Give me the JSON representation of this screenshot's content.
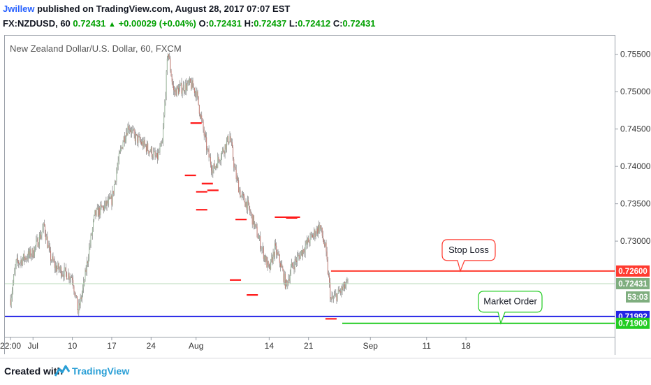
{
  "header": {
    "author": "Jwillew",
    "published_text": "published on TradingView.com, August 28, 2017 07:07 EST",
    "symbol": "FX:NZDUSD, 60",
    "last": "0.72431",
    "change": "+0.00029 (+0.04%)",
    "o_label": "O:",
    "o_value": "0.72431",
    "h_label": "H:",
    "h_value": "0.72437",
    "l_label": "L:",
    "l_value": "0.72412",
    "c_label": "C:",
    "c_value": "0.72431"
  },
  "chart_data": {
    "type": "candlestick",
    "title": "New Zealand Dollar/U.S. Dollar, 60, FXCM",
    "y_ticks": [
      "0.75500",
      "0.75000",
      "0.74500",
      "0.74000",
      "0.73500",
      "0.73000"
    ],
    "y_tick_values": [
      0.755,
      0.75,
      0.745,
      0.74,
      0.735,
      0.73
    ],
    "ylim": [
      0.7172,
      0.7575
    ],
    "x_ticks": [
      "22:00",
      "Jul",
      "10",
      "17",
      "24",
      "Aug",
      "14",
      "21",
      "Sep",
      "11",
      "18"
    ],
    "x_tick_dates": [
      "2017-06-29",
      "2017-07-03",
      "2017-07-10",
      "2017-07-17",
      "2017-07-24",
      "2017-08-01",
      "2017-08-14",
      "2017-08-21",
      "2017-09-01",
      "2017-09-11",
      "2017-09-18"
    ],
    "price_path": [
      {
        "date": "2017-06-29",
        "price": 0.7222
      },
      {
        "date": "2017-06-30",
        "price": 0.727
      },
      {
        "date": "2017-07-03",
        "price": 0.7285
      },
      {
        "date": "2017-07-05",
        "price": 0.732
      },
      {
        "date": "2017-07-06",
        "price": 0.728
      },
      {
        "date": "2017-07-07",
        "price": 0.7265
      },
      {
        "date": "2017-07-10",
        "price": 0.7252
      },
      {
        "date": "2017-07-11",
        "price": 0.7205
      },
      {
        "date": "2017-07-12",
        "price": 0.724
      },
      {
        "date": "2017-07-13",
        "price": 0.729
      },
      {
        "date": "2017-07-14",
        "price": 0.7335
      },
      {
        "date": "2017-07-17",
        "price": 0.7355
      },
      {
        "date": "2017-07-18",
        "price": 0.74
      },
      {
        "date": "2017-07-19",
        "price": 0.7435
      },
      {
        "date": "2017-07-20",
        "price": 0.7455
      },
      {
        "date": "2017-07-21",
        "price": 0.744
      },
      {
        "date": "2017-07-24",
        "price": 0.742
      },
      {
        "date": "2017-07-25",
        "price": 0.741
      },
      {
        "date": "2017-07-26",
        "price": 0.743
      },
      {
        "date": "2017-07-27",
        "price": 0.7555
      },
      {
        "date": "2017-07-28",
        "price": 0.75
      },
      {
        "date": "2017-07-31",
        "price": 0.751
      },
      {
        "date": "2017-08-01",
        "price": 0.75
      },
      {
        "date": "2017-08-02",
        "price": 0.746
      },
      {
        "date": "2017-08-03",
        "price": 0.742
      },
      {
        "date": "2017-08-04",
        "price": 0.7395
      },
      {
        "date": "2017-08-07",
        "price": 0.744
      },
      {
        "date": "2017-08-08",
        "price": 0.739
      },
      {
        "date": "2017-08-09",
        "price": 0.736
      },
      {
        "date": "2017-08-10",
        "price": 0.735
      },
      {
        "date": "2017-08-11",
        "price": 0.733
      },
      {
        "date": "2017-08-14",
        "price": 0.726
      },
      {
        "date": "2017-08-15",
        "price": 0.729
      },
      {
        "date": "2017-08-16",
        "price": 0.727
      },
      {
        "date": "2017-08-17",
        "price": 0.724
      },
      {
        "date": "2017-08-18",
        "price": 0.7265
      },
      {
        "date": "2017-08-21",
        "price": 0.73
      },
      {
        "date": "2017-08-22",
        "price": 0.731
      },
      {
        "date": "2017-08-23",
        "price": 0.732
      },
      {
        "date": "2017-08-24",
        "price": 0.729
      },
      {
        "date": "2017-08-25",
        "price": 0.722
      },
      {
        "date": "2017-08-28",
        "price": 0.7243
      }
    ],
    "markers": [
      {
        "date": "2017-08-01",
        "price": 0.7458
      },
      {
        "date": "2017-07-31",
        "price": 0.7388
      },
      {
        "date": "2017-08-03",
        "price": 0.7377
      },
      {
        "date": "2017-08-02",
        "price": 0.7366
      },
      {
        "date": "2017-08-04",
        "price": 0.7368
      },
      {
        "date": "2017-08-02",
        "price": 0.7342
      },
      {
        "date": "2017-08-09",
        "price": 0.7329
      },
      {
        "date": "2017-08-08",
        "price": 0.7248
      },
      {
        "date": "2017-08-11",
        "price": 0.7228
      },
      {
        "date": "2017-08-18",
        "price": 0.7331
      },
      {
        "date": "2017-08-25",
        "price": 0.7196
      }
    ],
    "resistance_line": {
      "start": "2017-08-15",
      "end": "2017-08-18",
      "price": 0.7332
    },
    "levels": [
      {
        "name": "Stop Loss",
        "label": "0.72600",
        "price": 0.726,
        "color": "#ff3b30",
        "start": "2017-08-25",
        "callout": "Stop Loss"
      },
      {
        "name": "current",
        "label": "0.72431",
        "price": 0.72431,
        "color": "#8fbf8f",
        "countdown": "53:03"
      },
      {
        "name": "blue",
        "label": "0.71992",
        "price": 0.71992,
        "color": "#2424e6"
      },
      {
        "name": "Market Order",
        "label": "0.71900",
        "price": 0.719,
        "color": "#22cc22",
        "start": "2017-08-27",
        "callout": "Market Order"
      }
    ]
  },
  "footer": {
    "created_with": "Created with",
    "brand": "TradingView"
  }
}
